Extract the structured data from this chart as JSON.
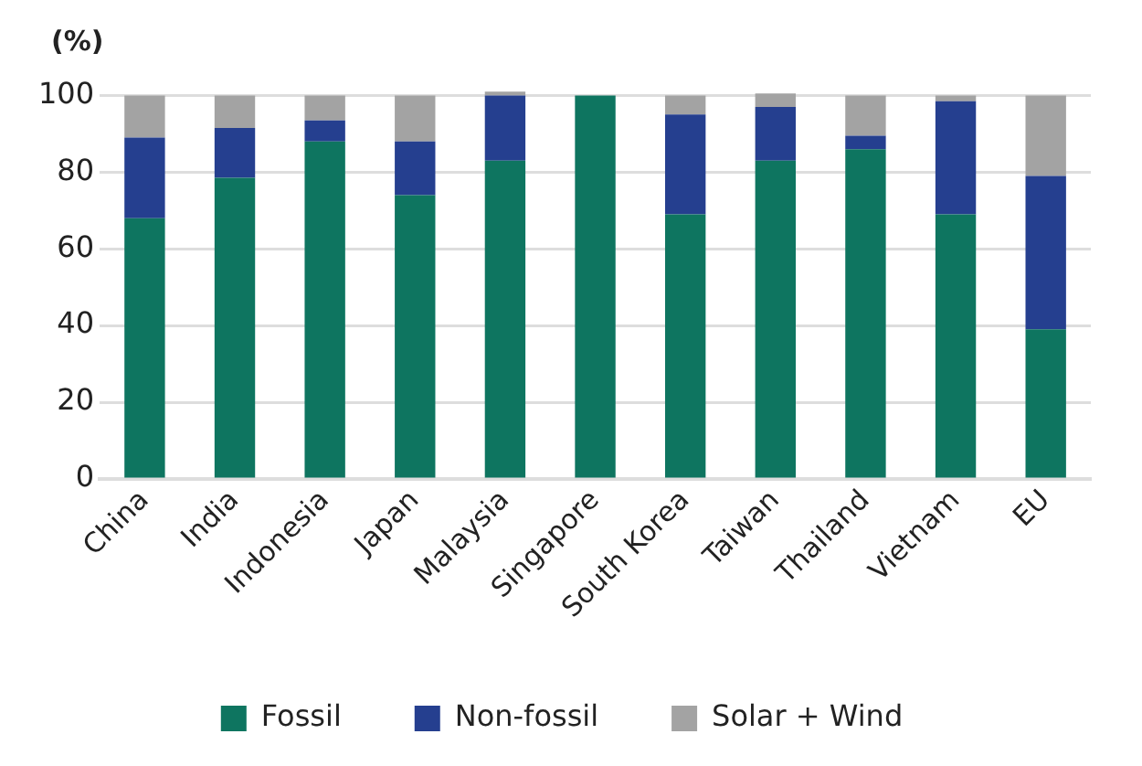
{
  "chart_data": {
    "type": "bar",
    "stacked": true,
    "ylabel": "(%)",
    "categories": [
      "China",
      "India",
      "Indonesia",
      "Japan",
      "Malaysia",
      "Singapore",
      "South Korea",
      "Taiwan",
      "Thailand",
      "Vietnam",
      "EU"
    ],
    "series": [
      {
        "name": "Fossil",
        "color": "#0e7560",
        "values": [
          68,
          78.5,
          88,
          74,
          83,
          100,
          69,
          83,
          86,
          69,
          39
        ]
      },
      {
        "name": "Non-fossil",
        "color": "#253f8f",
        "values": [
          21,
          13,
          5.5,
          14,
          17,
          0,
          26,
          14,
          3.5,
          29.5,
          40
        ]
      },
      {
        "name": "Solar + Wind",
        "color": "#a3a3a3",
        "values": [
          11,
          8.5,
          6.5,
          12,
          1,
          0,
          5,
          3.5,
          10.5,
          1.5,
          21
        ]
      }
    ],
    "ylim": [
      0,
      102
    ],
    "yticks": [
      0,
      20,
      40,
      60,
      80,
      100
    ],
    "grid": "y",
    "legend": "bottom"
  }
}
